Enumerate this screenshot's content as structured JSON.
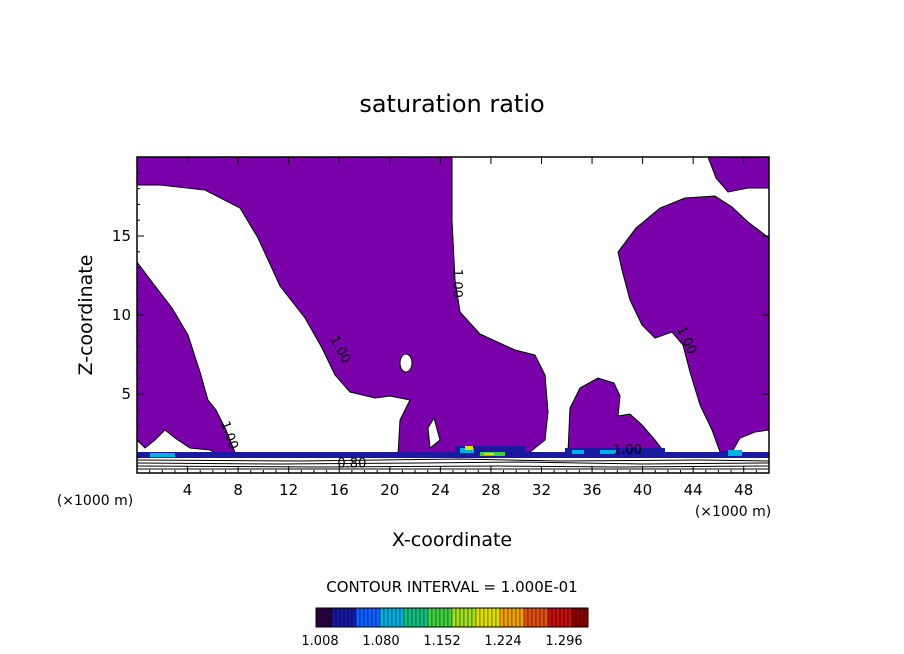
{
  "chart_data": {
    "type": "contour",
    "title": "saturation ratio",
    "xlabel": "X-coordinate",
    "ylabel": "Z-coordinate",
    "x_unit": "(×1000 m)",
    "z_unit": "(×1000 m)",
    "xlim": [
      0,
      50
    ],
    "zlim": [
      0,
      20
    ],
    "x_ticks": [
      4,
      8,
      12,
      16,
      20,
      24,
      28,
      32,
      36,
      40,
      44,
      48
    ],
    "z_ticks": [
      5,
      10,
      15
    ],
    "fill_color": "#7a00aa",
    "contour_labels": [
      {
        "text": "1.00",
        "x": 7.0,
        "z": 2.3,
        "angle": 70
      },
      {
        "text": "1.00",
        "x": 15.8,
        "z": 7.7,
        "angle": 62
      },
      {
        "text": "1.00",
        "x": 25.0,
        "z": 12.0,
        "angle": 90
      },
      {
        "text": "1.00",
        "x": 43.2,
        "z": 8.3,
        "angle": 65
      },
      {
        "text": "0.80",
        "x": 17.0,
        "z": 0.35,
        "angle": 0
      },
      {
        "text": "1.00",
        "x": 38.8,
        "z": 1.2,
        "angle": 0
      }
    ],
    "contour_interval": "CONTOUR INTERVAL = 1.000E-01",
    "colorbar": {
      "ticks": [
        "1.008",
        "1.080",
        "1.152",
        "1.224",
        "1.296"
      ],
      "colors": [
        "#2a0040",
        "#1a1aa0",
        "#1060ff",
        "#00b0e0",
        "#10c080",
        "#40d040",
        "#a0e020",
        "#e0e000",
        "#f0a000",
        "#e05010",
        "#c01010",
        "#8a0000"
      ]
    }
  }
}
